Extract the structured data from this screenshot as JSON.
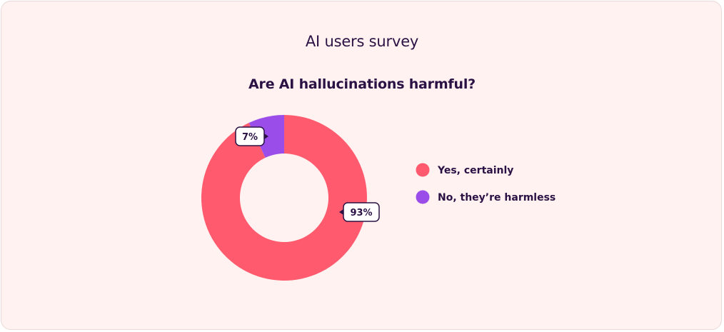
{
  "colors": {
    "background": "#fff2f1",
    "text": "#2a1244",
    "yes": "#ff5a6e",
    "no": "#9b4dea"
  },
  "chart_data": {
    "type": "pie",
    "title": "AI users survey",
    "subtitle": "Are AI hallucinations harmful?",
    "donut": true,
    "legend_position": "right",
    "categories": [
      "Yes, certainly",
      "No, they’re harmless"
    ],
    "values": [
      93,
      7
    ],
    "data_labels": [
      "93%",
      "7%"
    ],
    "colors": [
      "#ff5a6e",
      "#9b4dea"
    ]
  }
}
